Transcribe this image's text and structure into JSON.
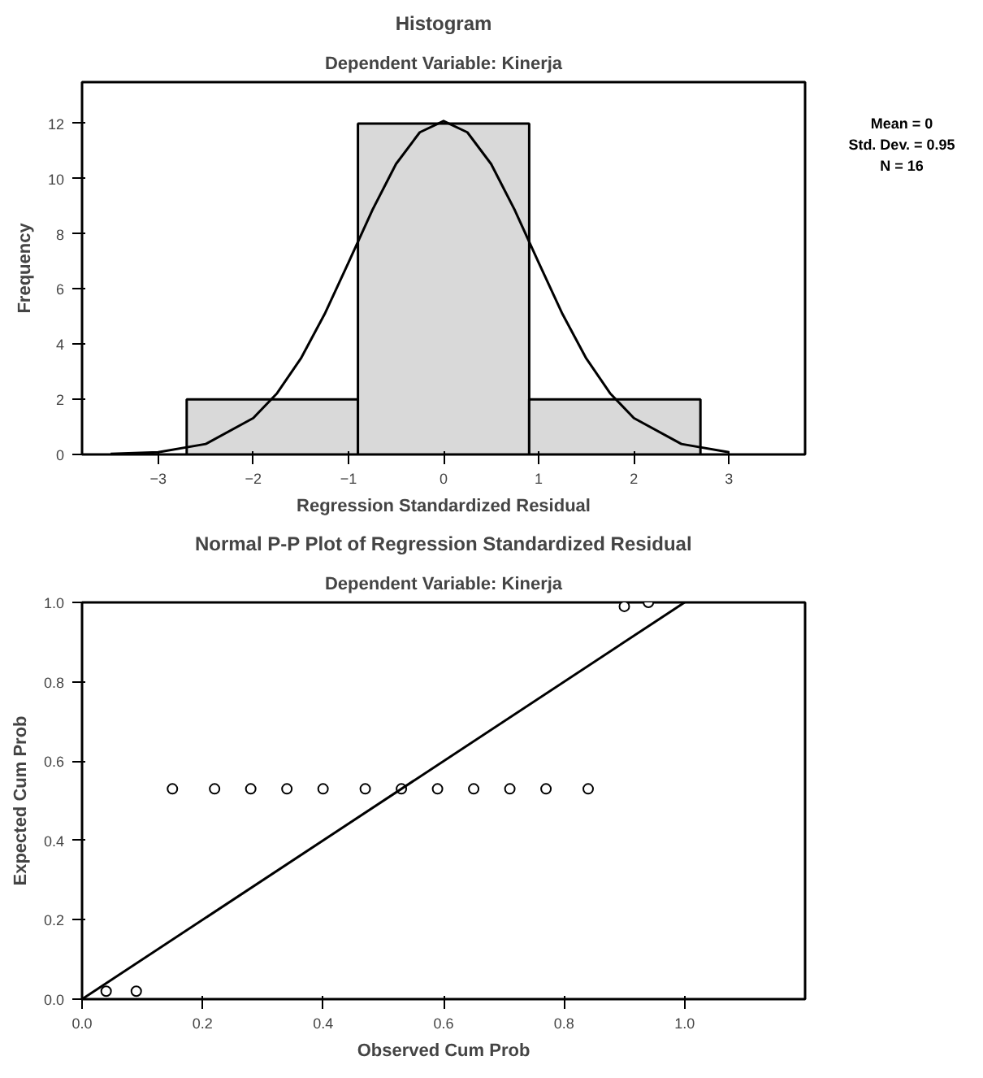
{
  "chart_data": [
    {
      "type": "histogram",
      "title": "Histogram",
      "subtitle": "Dependent Variable: Kinerja",
      "xlabel": "Regression Standardized Residual",
      "ylabel": "Frequency",
      "bins": [
        -2.7,
        -0.9,
        0.9,
        2.7
      ],
      "values": [
        2,
        12,
        2
      ],
      "color": "#d9d9d9",
      "xlim": [
        -3.8,
        3.8
      ],
      "xticks": [
        -3,
        -2,
        -1,
        0,
        1,
        2,
        3
      ],
      "ylim": [
        0,
        13.5
      ],
      "yticks": [
        0,
        2,
        4,
        6,
        8,
        10,
        12
      ],
      "grid": false,
      "annotations": [
        "Mean = 0",
        "Std. Dev. = 0.95",
        "N = 16"
      ],
      "series": [
        {
          "type": "line",
          "color": "#000000",
          "x": [
            -3.5,
            -3,
            -2.5,
            -2,
            -1.75,
            -1.5,
            -1.25,
            -1,
            -0.75,
            -0.5,
            -0.25,
            0,
            0.25,
            0.5,
            0.75,
            1,
            1.25,
            1.5,
            1.75,
            2,
            2.5,
            3
          ],
          "values": [
            0.02,
            0.08,
            0.38,
            1.32,
            2.22,
            3.48,
            5.09,
            6.95,
            8.85,
            10.53,
            11.68,
            12.09,
            11.68,
            10.53,
            8.85,
            6.95,
            5.09,
            3.48,
            2.22,
            1.32,
            0.38,
            0.08
          ]
        }
      ]
    },
    {
      "type": "scatter",
      "title": "Normal P-P Plot of Regression Standardized Residual",
      "subtitle": "Dependent Variable: Kinerja",
      "xlabel": "Observed Cum Prob",
      "ylabel": "Expected Cum Prob",
      "xlim": [
        0,
        1.2
      ],
      "xticks": [
        {
          "value": 0,
          "label": "0.0"
        },
        0.2,
        0.4,
        0.6,
        0.8,
        {
          "value": 1,
          "label": "1.0"
        }
      ],
      "ylim": [
        0,
        1
      ],
      "yticks": [
        {
          "value": 0,
          "label": "0.0"
        },
        0.2,
        0.4,
        0.6,
        0.8,
        {
          "value": 1,
          "label": "1.0"
        }
      ],
      "grid": false,
      "series": [
        {
          "type": "scatter",
          "marker": "circle",
          "color": "#000000",
          "x": [
            0.04,
            0.09,
            0.15,
            0.22,
            0.28,
            0.34,
            0.4,
            0.47,
            0.53,
            0.59,
            0.65,
            0.71,
            0.77,
            0.84,
            0.9,
            0.94
          ],
          "values": [
            0.02,
            0.02,
            0.53,
            0.53,
            0.53,
            0.53,
            0.53,
            0.53,
            0.53,
            0.53,
            0.53,
            0.53,
            0.53,
            0.53,
            0.99,
            1.0
          ]
        },
        {
          "type": "line",
          "color": "#000000",
          "x": [
            0,
            1
          ],
          "values": [
            0,
            1
          ]
        }
      ]
    }
  ]
}
